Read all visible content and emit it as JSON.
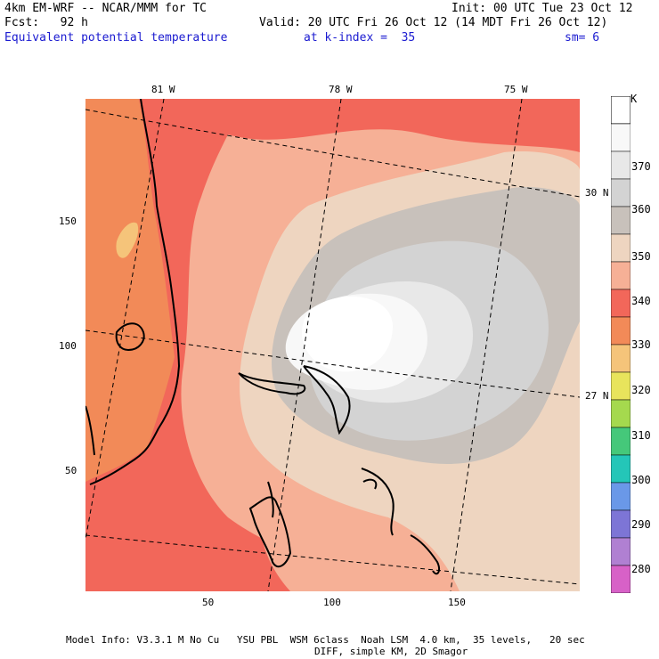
{
  "header": {
    "model": "4km EM-WRF -- NCAR/MMM for TC",
    "init": "Init: 00 UTC Tue 23 Oct 12",
    "fcst": "Fcst:   92 h",
    "valid": "Valid: 20 UTC Fri 26 Oct 12 (14 MDT Fri 26 Oct 12)",
    "field": "Equivalent potential temperature",
    "level": "at k-index =  35",
    "smooth": "sm= 6"
  },
  "axes": {
    "x_ticks": [
      "50",
      "100",
      "150"
    ],
    "y_ticks": [
      "150",
      "100",
      "50"
    ],
    "lon_labels": [
      "81 W",
      "78 W",
      "75 W"
    ],
    "lat_labels": [
      "30 N",
      "27 N"
    ]
  },
  "colorbar": {
    "unit": "K",
    "labels": [
      "370",
      "360",
      "350",
      "340",
      "330",
      "320",
      "310",
      "300",
      "290",
      "280"
    ],
    "colors": [
      "#ffffff",
      "#f8f8f8",
      "#e8e8e8",
      "#d3d3d3",
      "#c8c1bb",
      "#eed5c0",
      "#f6b096",
      "#f2675a",
      "#f28a58",
      "#f5c47a",
      "#e8e45c",
      "#a5d94e",
      "#45c87a",
      "#24c6b8",
      "#6a98e8",
      "#7d75d6",
      "#b080d2",
      "#d761c7"
    ]
  },
  "footer": {
    "line1": "Model Info: V3.3.1 M No Cu   YSU PBL  WSM 6class  Noah LSM  4.0 km,  35 levels,   20 sec",
    "line2": "DIFF, simple KM, 2D Smagor"
  }
}
